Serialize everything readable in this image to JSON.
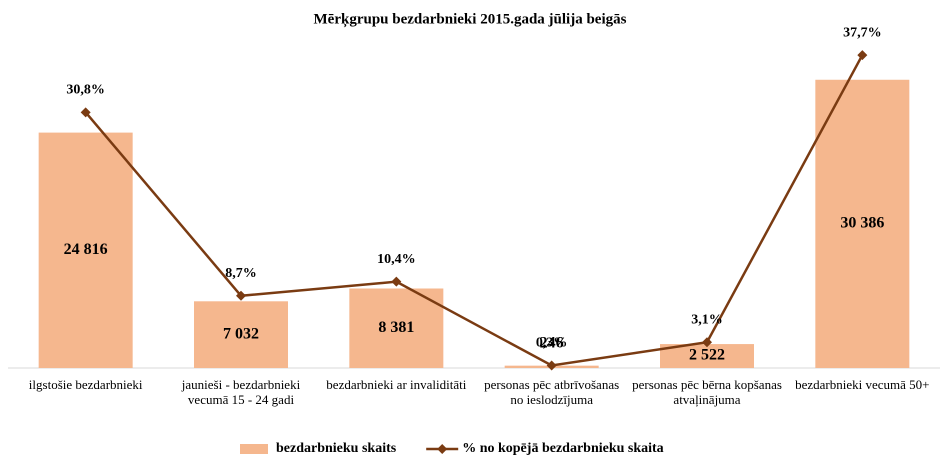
{
  "chart_data": {
    "type": "bar_line",
    "title": "Mērķgrupu bezdarbnieki 2015.gada jūlija beigās",
    "categories": [
      "ilgstošie bezdarbnieki",
      "jaunieši - bezdarbnieki vecumā 15 - 24 gadi",
      "bezdarbnieki ar invaliditāti",
      "personas pēc atbrīvošanas no ieslodzījuma",
      "personas pēc bērna kopšanas atvaļinājuma",
      "bezdarbnieki vecumā 50+"
    ],
    "series": [
      {
        "name": "bezdarbnieku skaits",
        "type": "bar",
        "color": "#f5b78e",
        "values": [
          24816,
          7032,
          8381,
          246,
          2522,
          30386
        ],
        "value_labels": [
          "24 816",
          "7 032",
          "8 381",
          "246",
          "2 522",
          "30 386"
        ]
      },
      {
        "name": "% no kopējā bezdarbnieku skaita",
        "type": "line",
        "axis": "y2",
        "color": "#7a3b12",
        "values": [
          30.8,
          8.7,
          10.4,
          0.3,
          3.1,
          37.7
        ],
        "value_labels": [
          "30,8%",
          "8,7%",
          "10,4%",
          "0,3%",
          "3,1%",
          "37,7%"
        ]
      }
    ],
    "ylim": [
      0,
      35000
    ],
    "y2lim": [
      0,
      40
    ],
    "legend": "bottom"
  }
}
